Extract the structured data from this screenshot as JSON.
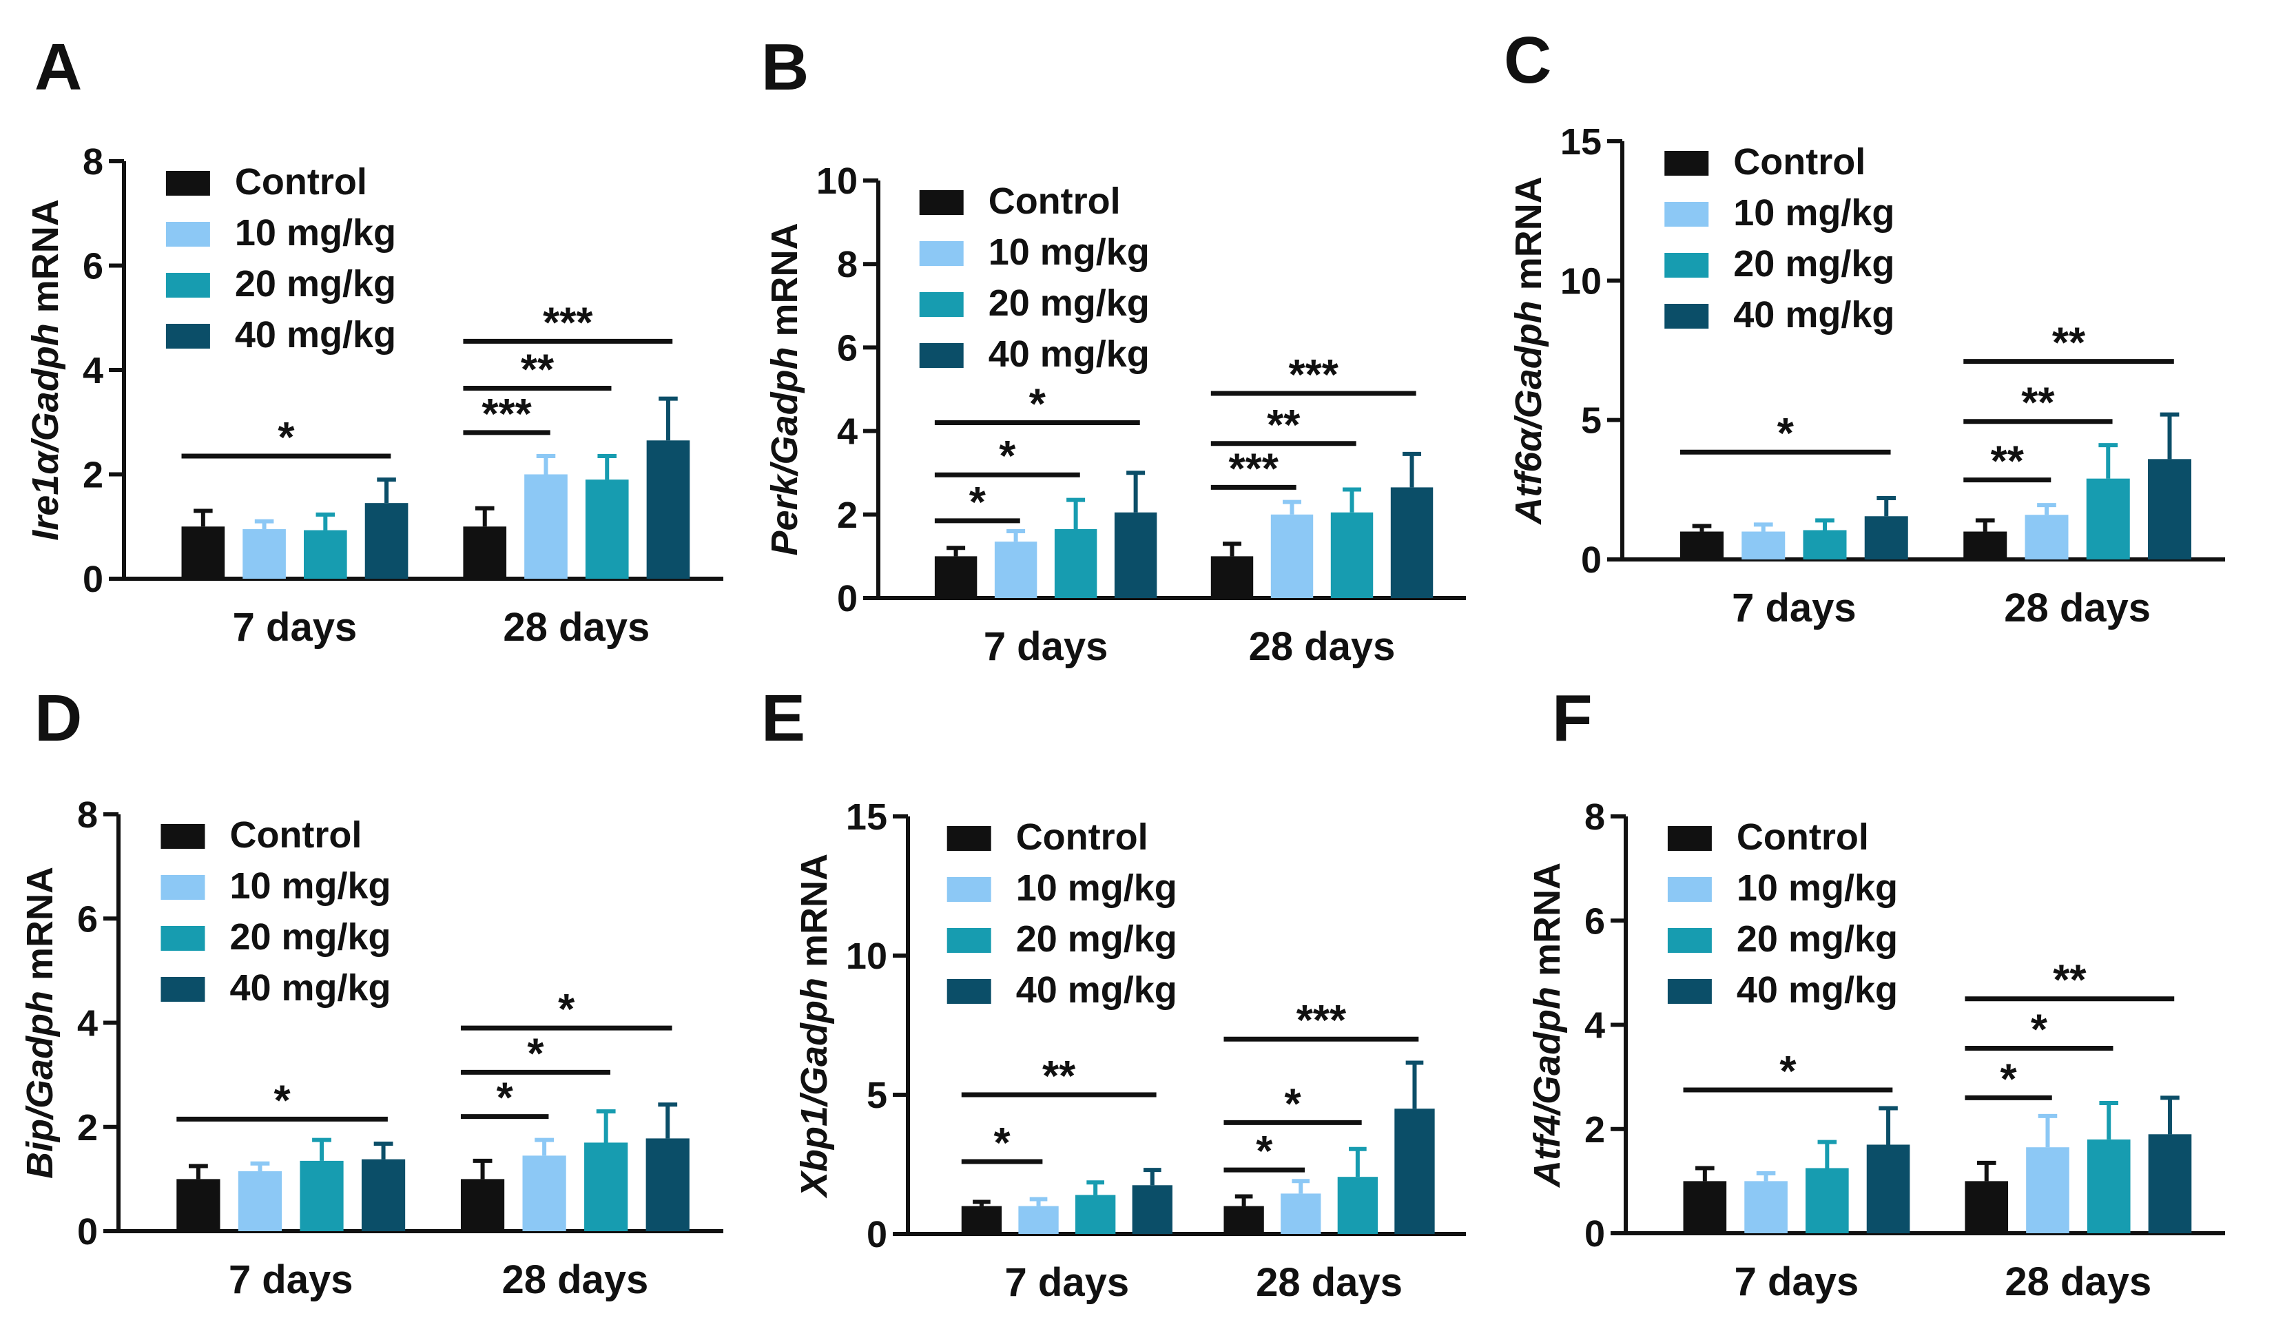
{
  "figure": {
    "colors": {
      "Control": "#111111",
      "10 mg/kg": "#8cc8f5",
      "20 mg/kg": "#179cb0",
      "40 mg/kg": "#0b4e68"
    }
  },
  "chart_data": [
    {
      "panel": "A",
      "type": "bar",
      "ylabel_gene": "Ire1α/Gadph",
      "ylabel_suffix": " mRNA",
      "ylim": [
        0,
        8
      ],
      "yticks": [
        0,
        2,
        4,
        6,
        8
      ],
      "categories": [
        "7 days",
        "28 days"
      ],
      "legend": [
        "Control",
        "10 mg/kg",
        "20 mg/kg",
        "40 mg/kg"
      ],
      "series": [
        {
          "name": "Control",
          "values": [
            1.0,
            1.0
          ],
          "errors": [
            0.3,
            0.35
          ]
        },
        {
          "name": "10 mg/kg",
          "values": [
            0.95,
            2.0
          ],
          "errors": [
            0.15,
            0.35
          ]
        },
        {
          "name": "20 mg/kg",
          "values": [
            0.93,
            1.9
          ],
          "errors": [
            0.3,
            0.45
          ]
        },
        {
          "name": "40 mg/kg",
          "values": [
            1.45,
            2.65
          ],
          "errors": [
            0.45,
            0.8
          ]
        }
      ],
      "significance": [
        {
          "group": 0,
          "from": 0,
          "to": 3,
          "label": "*",
          "y": 2.35
        },
        {
          "group": 1,
          "from": 0,
          "to": 1,
          "label": "***",
          "y": 2.8
        },
        {
          "group": 1,
          "from": 0,
          "to": 2,
          "label": "**",
          "y": 3.65
        },
        {
          "group": 1,
          "from": 0,
          "to": 3,
          "label": "***",
          "y": 4.55
        }
      ]
    },
    {
      "panel": "B",
      "type": "bar",
      "ylabel_gene": "Perk/Gadph",
      "ylabel_suffix": " mRNA",
      "ylim": [
        0,
        10
      ],
      "yticks": [
        0,
        2,
        4,
        6,
        8,
        10
      ],
      "categories": [
        "7 days",
        "28 days"
      ],
      "legend": [
        "Control",
        "10 mg/kg",
        "20 mg/kg",
        "40 mg/kg"
      ],
      "series": [
        {
          "name": "Control",
          "values": [
            1.0,
            1.0
          ],
          "errors": [
            0.2,
            0.3
          ]
        },
        {
          "name": "10 mg/kg",
          "values": [
            1.35,
            2.0
          ],
          "errors": [
            0.25,
            0.3
          ]
        },
        {
          "name": "20 mg/kg",
          "values": [
            1.65,
            2.05
          ],
          "errors": [
            0.7,
            0.55
          ]
        },
        {
          "name": "40 mg/kg",
          "values": [
            2.05,
            2.65
          ],
          "errors": [
            0.95,
            0.8
          ]
        }
      ],
      "significance": [
        {
          "group": 0,
          "from": 0,
          "to": 1,
          "label": "*",
          "y": 1.85
        },
        {
          "group": 0,
          "from": 0,
          "to": 2,
          "label": "*",
          "y": 2.95
        },
        {
          "group": 0,
          "from": 0,
          "to": 3,
          "label": "*",
          "y": 4.2
        },
        {
          "group": 1,
          "from": 0,
          "to": 1,
          "label": "***",
          "y": 2.65
        },
        {
          "group": 1,
          "from": 0,
          "to": 2,
          "label": "**",
          "y": 3.7
        },
        {
          "group": 1,
          "from": 0,
          "to": 3,
          "label": "***",
          "y": 4.9
        }
      ]
    },
    {
      "panel": "C",
      "type": "bar",
      "ylabel_gene": "Atf6α/Gadph",
      "ylabel_suffix": " mRNA",
      "ylim": [
        0,
        15
      ],
      "yticks": [
        0,
        5,
        10,
        15
      ],
      "categories": [
        "7 days",
        "28 days"
      ],
      "legend": [
        "Control",
        "10 mg/kg",
        "20 mg/kg",
        "40 mg/kg"
      ],
      "series": [
        {
          "name": "Control",
          "values": [
            1.0,
            1.0
          ],
          "errors": [
            0.2,
            0.4
          ]
        },
        {
          "name": "10 mg/kg",
          "values": [
            1.0,
            1.6
          ],
          "errors": [
            0.25,
            0.35
          ]
        },
        {
          "name": "20 mg/kg",
          "values": [
            1.05,
            2.9
          ],
          "errors": [
            0.35,
            1.2
          ]
        },
        {
          "name": "40 mg/kg",
          "values": [
            1.55,
            3.6
          ],
          "errors": [
            0.65,
            1.6
          ]
        }
      ],
      "significance": [
        {
          "group": 0,
          "from": 0,
          "to": 3,
          "label": "*",
          "y": 3.85
        },
        {
          "group": 1,
          "from": 0,
          "to": 1,
          "label": "**",
          "y": 2.85
        },
        {
          "group": 1,
          "from": 0,
          "to": 2,
          "label": "**",
          "y": 4.95
        },
        {
          "group": 1,
          "from": 0,
          "to": 3,
          "label": "**",
          "y": 7.1
        }
      ]
    },
    {
      "panel": "D",
      "type": "bar",
      "ylabel_gene": "Bip/Gadph",
      "ylabel_suffix": " mRNA",
      "ylim": [
        0,
        8
      ],
      "yticks": [
        0,
        2,
        4,
        6,
        8
      ],
      "categories": [
        "7 days",
        "28 days"
      ],
      "legend": [
        "Control",
        "10 mg/kg",
        "20 mg/kg",
        "40 mg/kg"
      ],
      "series": [
        {
          "name": "Control",
          "values": [
            1.0,
            1.0
          ],
          "errors": [
            0.25,
            0.35
          ]
        },
        {
          "name": "10 mg/kg",
          "values": [
            1.15,
            1.45
          ],
          "errors": [
            0.15,
            0.3
          ]
        },
        {
          "name": "20 mg/kg",
          "values": [
            1.35,
            1.7
          ],
          "errors": [
            0.4,
            0.6
          ]
        },
        {
          "name": "40 mg/kg",
          "values": [
            1.38,
            1.78
          ],
          "errors": [
            0.3,
            0.65
          ]
        }
      ],
      "significance": [
        {
          "group": 0,
          "from": 0,
          "to": 3,
          "label": "*",
          "y": 2.15
        },
        {
          "group": 1,
          "from": 0,
          "to": 1,
          "label": "*",
          "y": 2.2
        },
        {
          "group": 1,
          "from": 0,
          "to": 2,
          "label": "*",
          "y": 3.05
        },
        {
          "group": 1,
          "from": 0,
          "to": 3,
          "label": "*",
          "y": 3.9
        }
      ]
    },
    {
      "panel": "E",
      "type": "bar",
      "ylabel_gene": "Xbp1/Gadph",
      "ylabel_suffix": " mRNA",
      "ylim": [
        0,
        15
      ],
      "yticks": [
        0,
        5,
        10,
        15
      ],
      "categories": [
        "7 days",
        "28 days"
      ],
      "legend": [
        "Control",
        "10 mg/kg",
        "20 mg/kg",
        "40 mg/kg"
      ],
      "series": [
        {
          "name": "Control",
          "values": [
            1.0,
            1.0
          ],
          "errors": [
            0.15,
            0.35
          ]
        },
        {
          "name": "10 mg/kg",
          "values": [
            1.0,
            1.45
          ],
          "errors": [
            0.25,
            0.45
          ]
        },
        {
          "name": "20 mg/kg",
          "values": [
            1.4,
            2.05
          ],
          "errors": [
            0.45,
            1.0
          ]
        },
        {
          "name": "40 mg/kg",
          "values": [
            1.75,
            4.5
          ],
          "errors": [
            0.55,
            1.65
          ]
        }
      ],
      "significance": [
        {
          "group": 0,
          "from": 0,
          "to": 1,
          "label": "*",
          "y": 2.6
        },
        {
          "group": 0,
          "from": 0,
          "to": 3,
          "label": "**",
          "y": 5.0
        },
        {
          "group": 1,
          "from": 0,
          "to": 1,
          "label": "*",
          "y": 2.3
        },
        {
          "group": 1,
          "from": 0,
          "to": 2,
          "label": "*",
          "y": 4.0
        },
        {
          "group": 1,
          "from": 0,
          "to": 3,
          "label": "***",
          "y": 7.0
        }
      ]
    },
    {
      "panel": "F",
      "type": "bar",
      "ylabel_gene": "Atf4/Gadph",
      "ylabel_suffix": " mRNA",
      "ylim": [
        0,
        8
      ],
      "yticks": [
        0,
        2,
        4,
        6,
        8
      ],
      "categories": [
        "7 days",
        "28 days"
      ],
      "legend": [
        "Control",
        "10 mg/kg",
        "20 mg/kg",
        "40 mg/kg"
      ],
      "series": [
        {
          "name": "Control",
          "values": [
            1.0,
            1.0
          ],
          "errors": [
            0.25,
            0.35
          ]
        },
        {
          "name": "10 mg/kg",
          "values": [
            1.0,
            1.65
          ],
          "errors": [
            0.15,
            0.6
          ]
        },
        {
          "name": "20 mg/kg",
          "values": [
            1.25,
            1.8
          ],
          "errors": [
            0.5,
            0.7
          ]
        },
        {
          "name": "40 mg/kg",
          "values": [
            1.7,
            1.9
          ],
          "errors": [
            0.7,
            0.7
          ]
        }
      ],
      "significance": [
        {
          "group": 0,
          "from": 0,
          "to": 3,
          "label": "*",
          "y": 2.75
        },
        {
          "group": 1,
          "from": 0,
          "to": 1,
          "label": "*",
          "y": 2.6
        },
        {
          "group": 1,
          "from": 0,
          "to": 2,
          "label": "*",
          "y": 3.55
        },
        {
          "group": 1,
          "from": 0,
          "to": 3,
          "label": "**",
          "y": 4.5
        }
      ]
    }
  ]
}
